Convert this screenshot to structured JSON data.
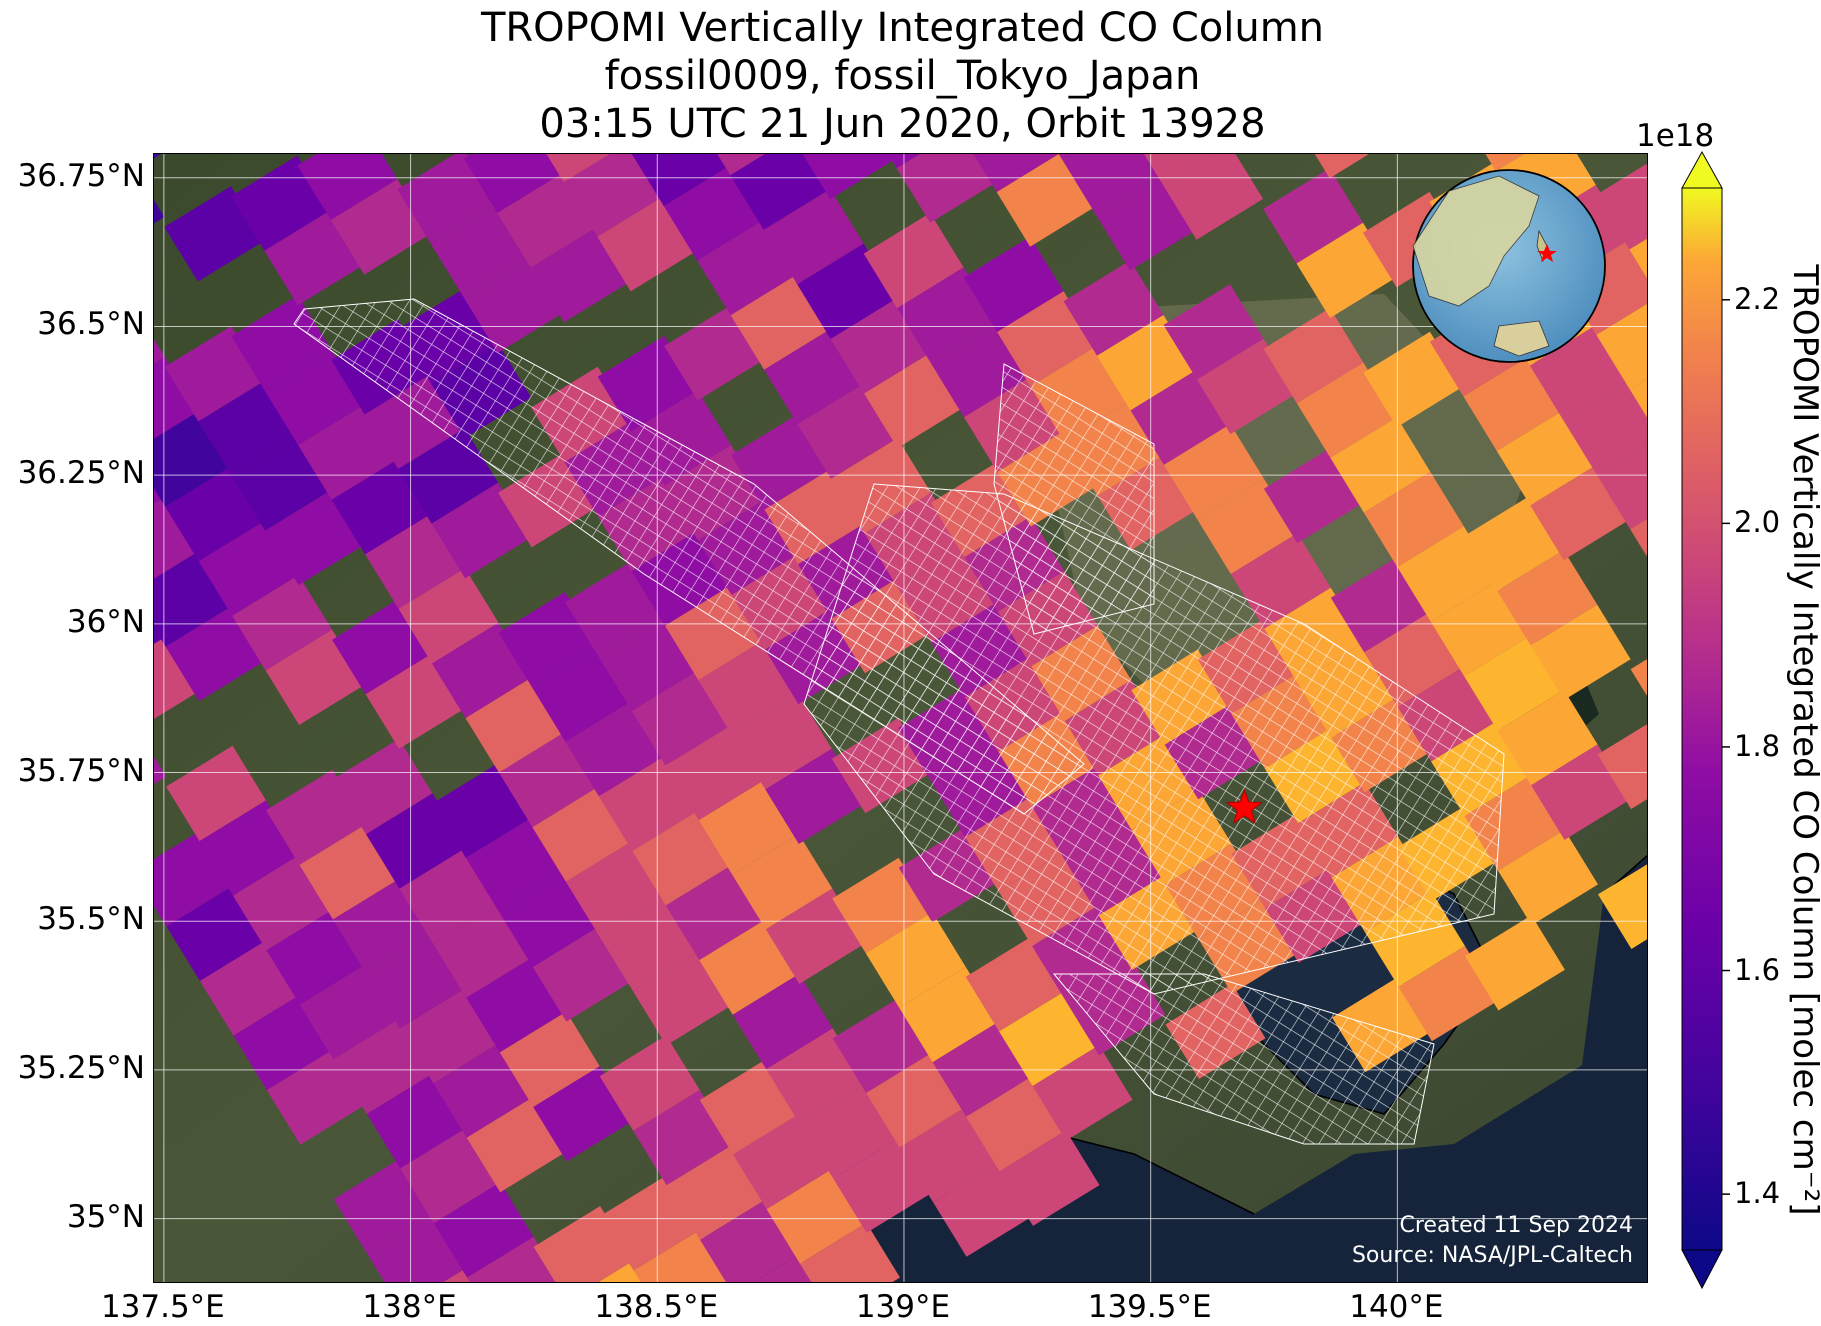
{
  "title": {
    "line1": "TROPOMI Vertically Integrated CO Column",
    "line2": "fossil0009, fossil_Tokyo_Japan",
    "line3": "03:15 UTC 21 Jun 2020, Orbit 13928"
  },
  "map": {
    "lon_range": [
      137.48,
      140.51
    ],
    "lat_range": [
      34.89,
      36.79
    ],
    "lat_ticks": [
      {
        "value": 36.75,
        "label": "36.75°N"
      },
      {
        "value": 36.5,
        "label": "36.5°N"
      },
      {
        "value": 36.25,
        "label": "36.25°N"
      },
      {
        "value": 36.0,
        "label": "36°N"
      },
      {
        "value": 35.75,
        "label": "35.75°N"
      },
      {
        "value": 35.5,
        "label": "35.5°N"
      },
      {
        "value": 35.25,
        "label": "35.25°N"
      },
      {
        "value": 35.0,
        "label": "35°N"
      }
    ],
    "lon_ticks": [
      {
        "value": 137.5,
        "label": "137.5°E"
      },
      {
        "value": 138.0,
        "label": "138°E"
      },
      {
        "value": 138.5,
        "label": "138.5°E"
      },
      {
        "value": 139.0,
        "label": "139°E"
      },
      {
        "value": 139.5,
        "label": "139.5°E"
      },
      {
        "value": 140.0,
        "label": "140°E"
      }
    ],
    "target_marker": {
      "lon": 139.69,
      "lat": 35.69,
      "color": "#ff0000"
    },
    "gridlines": true,
    "inset": "globe-locator"
  },
  "colorbar": {
    "colormap": "plasma",
    "min": 1.35,
    "max": 2.3,
    "extend": "both",
    "exponent": "1e18",
    "ticks": [
      {
        "value": 1.4,
        "label": "1.4"
      },
      {
        "value": 1.6,
        "label": "1.6"
      },
      {
        "value": 1.8,
        "label": "1.8"
      },
      {
        "value": 2.0,
        "label": "2.0"
      },
      {
        "value": 2.2,
        "label": "2.2"
      }
    ],
    "label": "TROPOMI Vertically Integrated CO Column [molec cm⁻²]"
  },
  "credits": {
    "created": "Created 11 Sep 2024",
    "source": "Source: NASA/JPL-Caltech"
  }
}
